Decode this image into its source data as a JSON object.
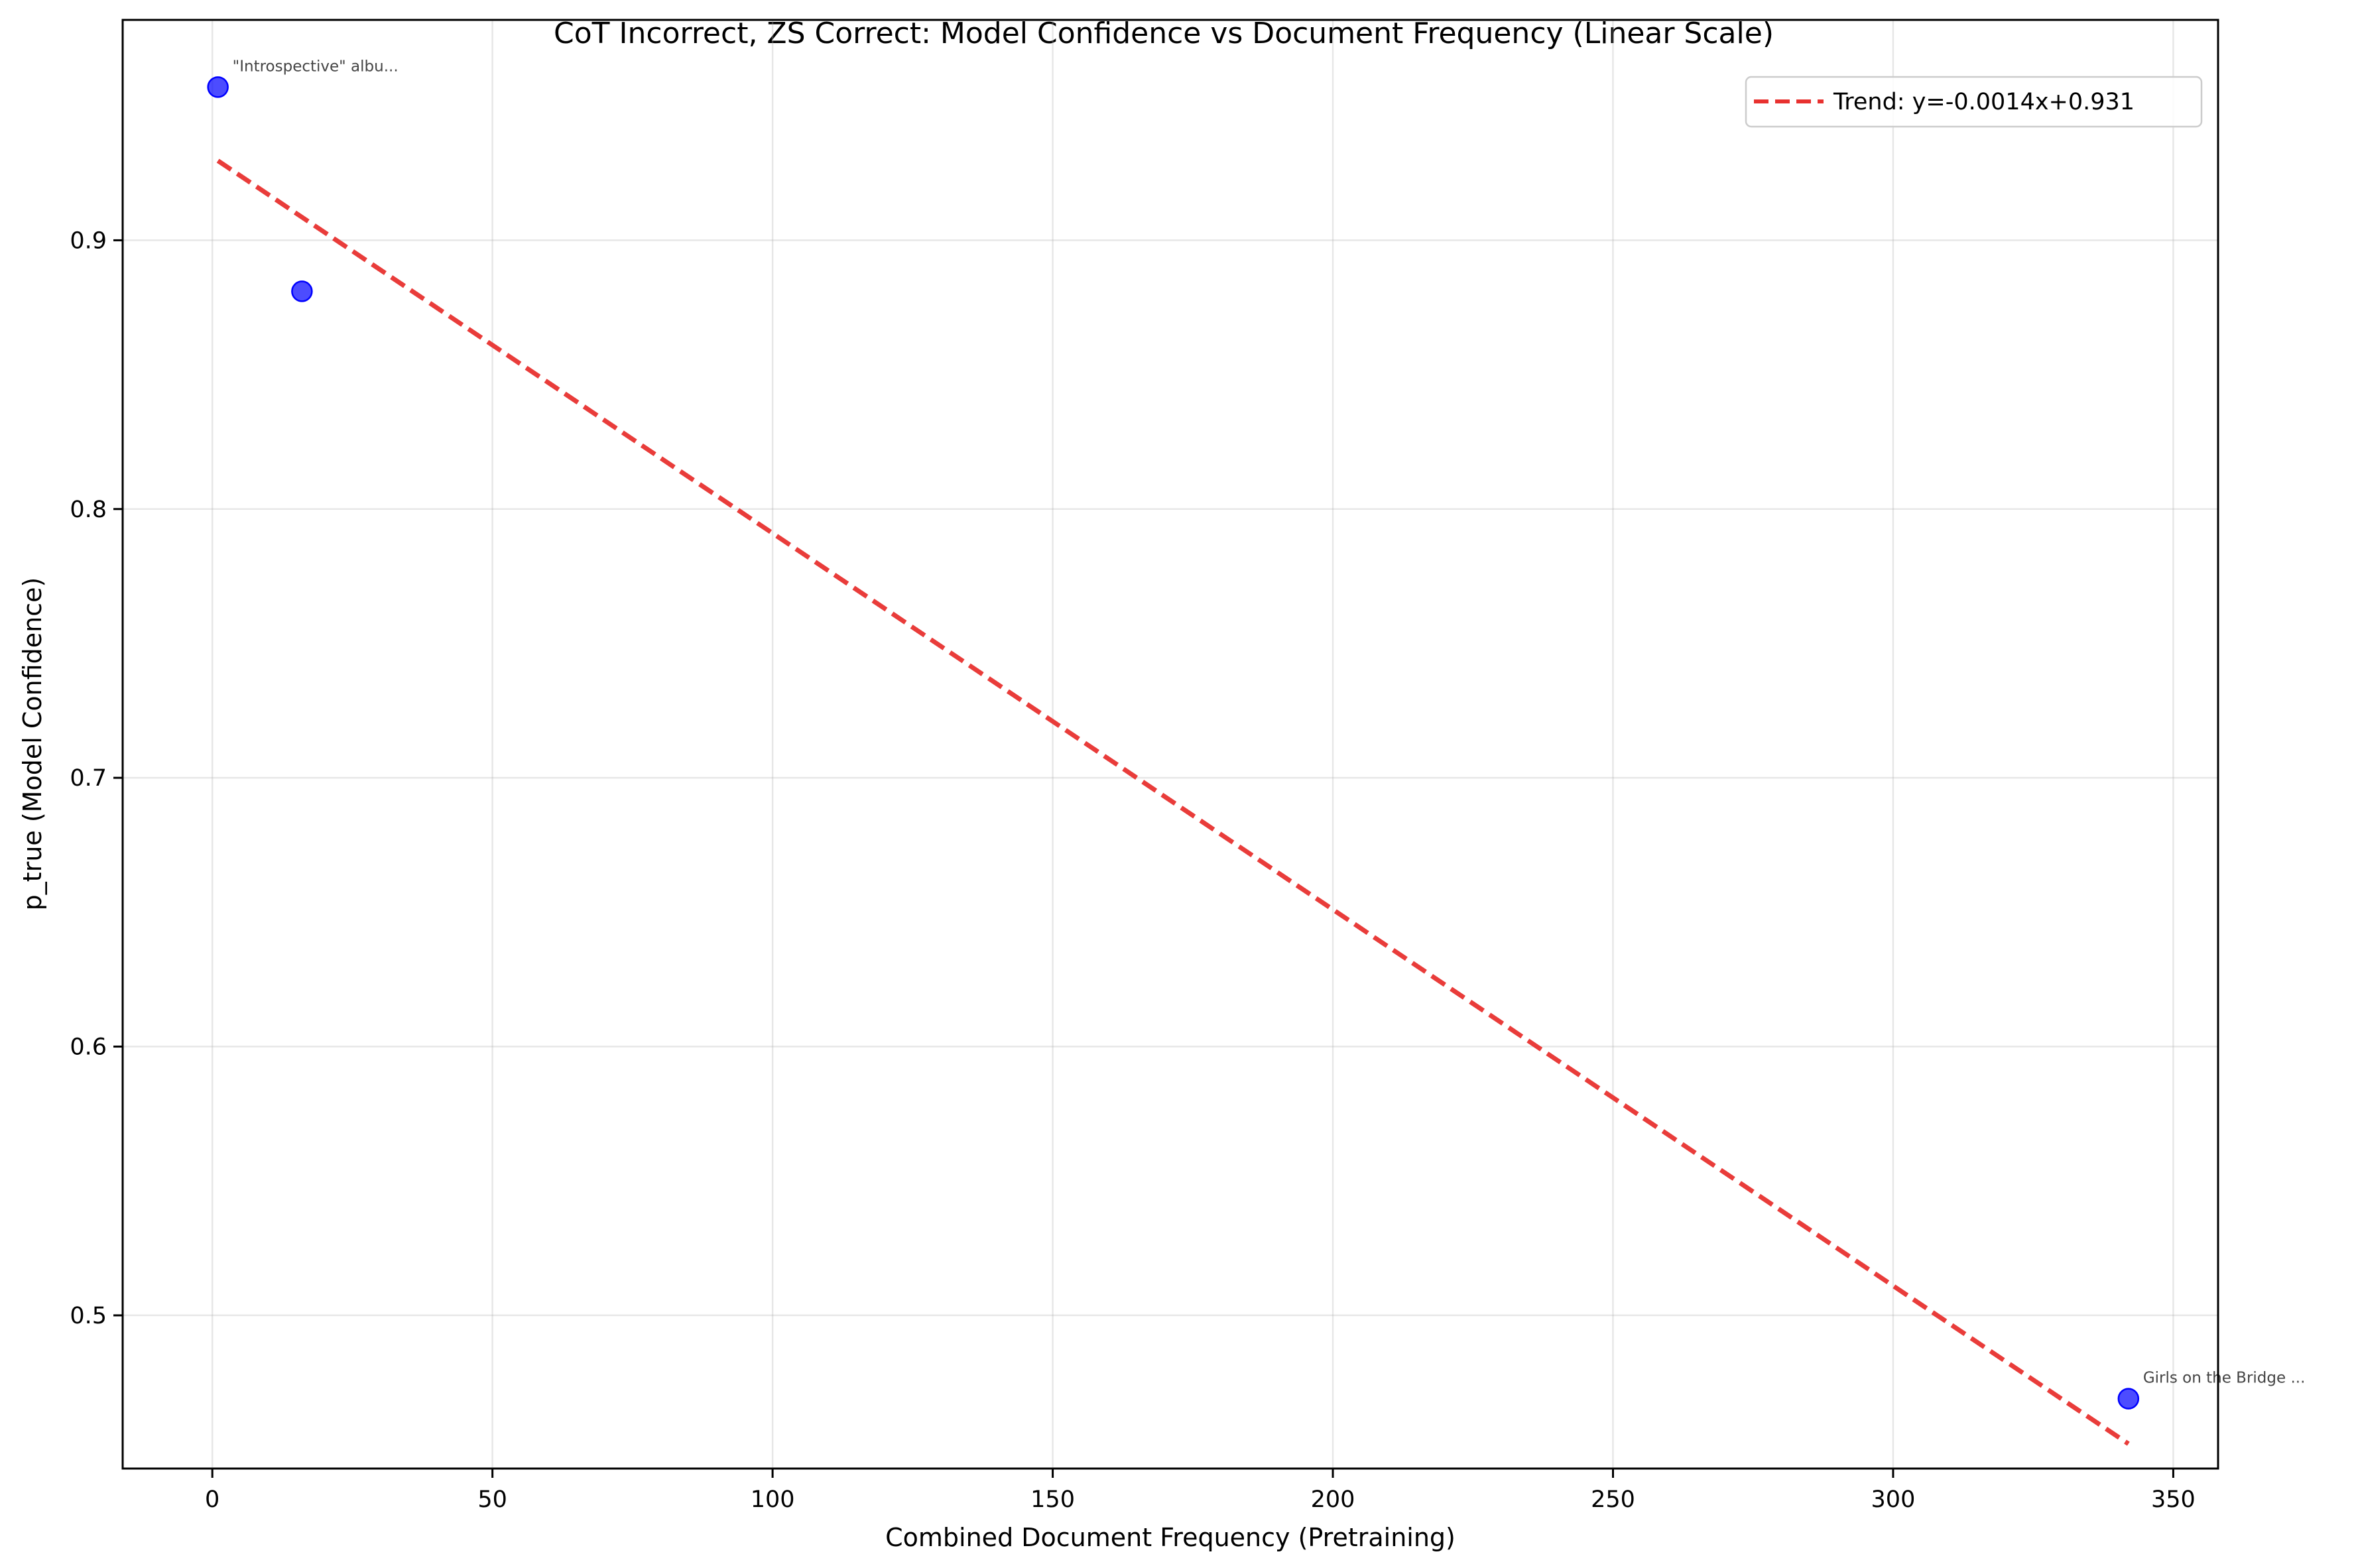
{
  "chart_data": {
    "type": "scatter",
    "title": "CoT Incorrect, ZS Correct: Model Confidence vs Document Frequency (Linear Scale)",
    "xlabel": "Combined Document Frequency (Pretraining)",
    "ylabel": "p_true (Model Confidence)",
    "xlim": [
      -16,
      358
    ],
    "ylim": [
      0.443,
      0.982
    ],
    "xticks": [
      0,
      50,
      100,
      150,
      200,
      250,
      300,
      350
    ],
    "yticks": [
      0.5,
      0.6,
      0.7,
      0.8,
      0.9
    ],
    "xtick_labels": [
      "0",
      "50",
      "100",
      "150",
      "200",
      "250",
      "300",
      "350"
    ],
    "ytick_labels": [
      "0.5",
      "0.6",
      "0.7",
      "0.8",
      "0.9"
    ],
    "grid": true,
    "series": [
      {
        "points": [
          {
            "x": 1,
            "y": 0.957,
            "label": "\"Introspective\" albu..."
          },
          {
            "x": 16,
            "y": 0.881,
            "label": ""
          },
          {
            "x": 342,
            "y": 0.469,
            "label": "Girls on the Bridge ..."
          }
        ],
        "color": "#0000ff"
      }
    ],
    "trend": {
      "name": "Trend: y=-0.0014x+0.931",
      "slope": -0.0014,
      "intercept": 0.931,
      "x_range": [
        1,
        342
      ],
      "color": "#e8312f",
      "style": "dashed"
    },
    "legend_position": "top-right"
  }
}
